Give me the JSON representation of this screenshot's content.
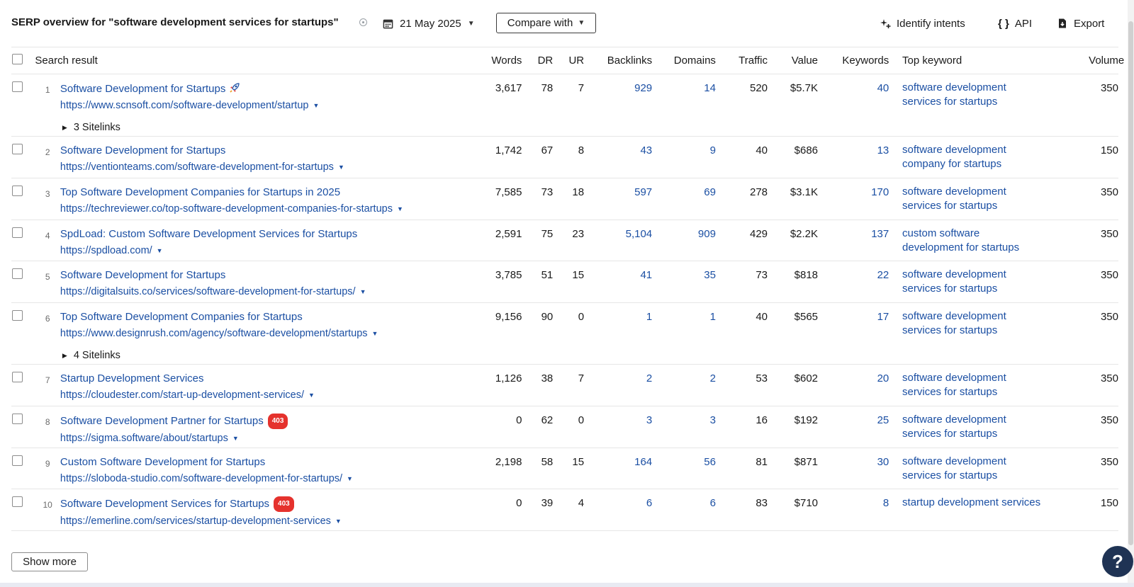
{
  "header": {
    "title": "SERP overview for \"software development services for startups\"",
    "date": "21 May 2025",
    "compare_label": "Compare with",
    "identify_intents_label": "Identify intents",
    "api_label": "API",
    "export_label": "Export"
  },
  "table": {
    "columns": {
      "search_result": "Search result",
      "words": "Words",
      "dr": "DR",
      "ur": "UR",
      "backlinks": "Backlinks",
      "domains": "Domains",
      "traffic": "Traffic",
      "value": "Value",
      "keywords": "Keywords",
      "top_keyword": "Top keyword",
      "volume": "Volume"
    },
    "rows": [
      {
        "rank": "1",
        "title": "Software Development for Startups",
        "url": "https://www.scnsoft.com/software-development/startup",
        "sitelinks": "3 Sitelinks",
        "words": "3,617",
        "dr": "78",
        "ur": "7",
        "backlinks": "929",
        "domains": "14",
        "traffic": "520",
        "value": "$5.7K",
        "keywords": "40",
        "top_keyword": "software development services for startups",
        "volume": "350"
      },
      {
        "rank": "2",
        "title": "Software Development for Startups",
        "url": "https://ventionteams.com/software-development-for-startups",
        "words": "1,742",
        "dr": "67",
        "ur": "8",
        "backlinks": "43",
        "domains": "9",
        "traffic": "40",
        "value": "$686",
        "keywords": "13",
        "top_keyword": "software development company for startups",
        "volume": "150"
      },
      {
        "rank": "3",
        "title": "Top Software Development Companies for Startups in 2025",
        "url": "https://techreviewer.co/top-software-development-companies-for-startups",
        "words": "7,585",
        "dr": "73",
        "ur": "18",
        "backlinks": "597",
        "domains": "69",
        "traffic": "278",
        "value": "$3.1K",
        "keywords": "170",
        "top_keyword": "software development services for startups",
        "volume": "350"
      },
      {
        "rank": "4",
        "title": "SpdLoad: Custom Software Development Services for Startups",
        "url": "https://spdload.com/",
        "words": "2,591",
        "dr": "75",
        "ur": "23",
        "backlinks": "5,104",
        "domains": "909",
        "traffic": "429",
        "value": "$2.2K",
        "keywords": "137",
        "top_keyword": "custom software development for startups",
        "volume": "350"
      },
      {
        "rank": "5",
        "title": "Software Development for Startups",
        "url": "https://digitalsuits.co/services/software-development-for-startups/",
        "words": "3,785",
        "dr": "51",
        "ur": "15",
        "backlinks": "41",
        "domains": "35",
        "traffic": "73",
        "value": "$818",
        "keywords": "22",
        "top_keyword": "software development services for startups",
        "volume": "350"
      },
      {
        "rank": "6",
        "title": "Top Software Development Companies for Startups",
        "url": "https://www.designrush.com/agency/software-development/startups",
        "sitelinks": "4 Sitelinks",
        "words": "9,156",
        "dr": "90",
        "ur": "0",
        "backlinks": "1",
        "domains": "1",
        "traffic": "40",
        "value": "$565",
        "keywords": "17",
        "top_keyword": "software development services for startups",
        "volume": "350"
      },
      {
        "rank": "7",
        "title": "Startup Development Services",
        "url": "https://cloudester.com/start-up-development-services/",
        "words": "1,126",
        "dr": "38",
        "ur": "7",
        "backlinks": "2",
        "domains": "2",
        "traffic": "53",
        "value": "$602",
        "keywords": "20",
        "top_keyword": "software development services for startups",
        "volume": "350"
      },
      {
        "rank": "8",
        "title": "Software Development Partner for Startups",
        "badge": "403",
        "url": "https://sigma.software/about/startups",
        "words": "0",
        "dr": "62",
        "ur": "0",
        "backlinks": "3",
        "domains": "3",
        "traffic": "16",
        "value": "$192",
        "keywords": "25",
        "top_keyword": "software development services for startups",
        "volume": "350"
      },
      {
        "rank": "9",
        "title": "Custom Software Development for Startups",
        "url": "https://sloboda-studio.com/software-development-for-startups/",
        "words": "2,198",
        "dr": "58",
        "ur": "15",
        "backlinks": "164",
        "domains": "56",
        "traffic": "81",
        "value": "$871",
        "keywords": "30",
        "top_keyword": "software development services for startups",
        "volume": "350"
      },
      {
        "rank": "10",
        "title": "Software Development Services for Startups",
        "badge": "403",
        "url": "https://emerline.com/services/startup-development-services",
        "words": "0",
        "dr": "39",
        "ur": "4",
        "backlinks": "6",
        "domains": "6",
        "traffic": "83",
        "value": "$710",
        "keywords": "8",
        "top_keyword": "startup development services",
        "volume": "150"
      }
    ]
  },
  "footer": {
    "show_more_label": "Show more",
    "help_label": "?"
  },
  "colors": {
    "link": "#1b4fa3",
    "badge": "#e5322d",
    "help_button": "#1f3354"
  }
}
